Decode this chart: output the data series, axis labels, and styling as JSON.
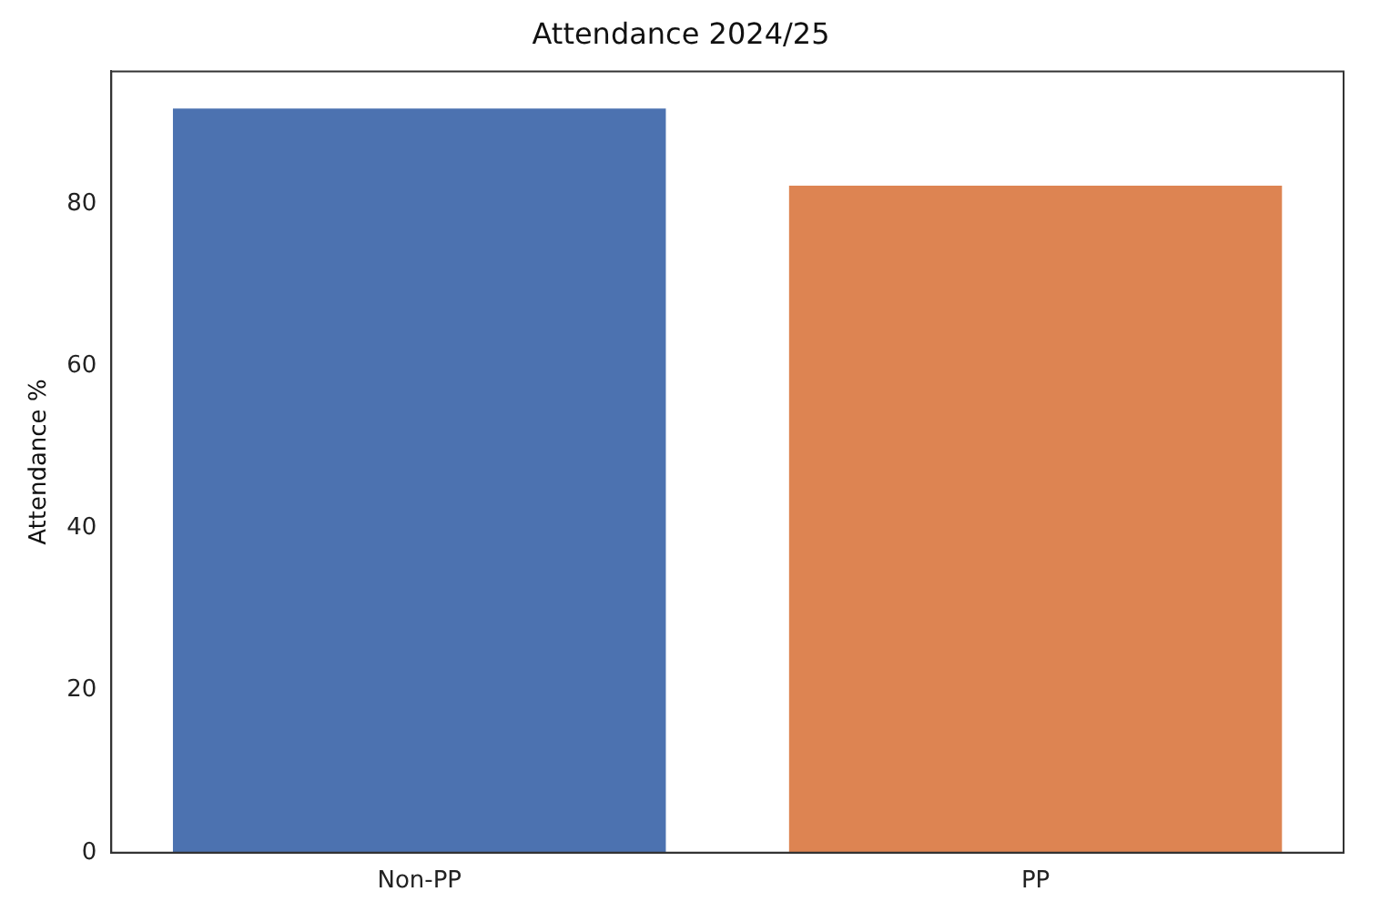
{
  "chart_data": {
    "type": "bar",
    "title": "Attendance 2024/25",
    "ylabel": "Attendance %",
    "categories": [
      "Non-PP",
      "PP"
    ],
    "values": [
      91.8,
      82.3
    ],
    "colors": [
      "#4c72b0",
      "#dd8452"
    ],
    "ylim": [
      0,
      96.4
    ],
    "yticks": [
      0,
      20,
      40,
      60,
      80
    ],
    "grid": false,
    "legend": false
  }
}
